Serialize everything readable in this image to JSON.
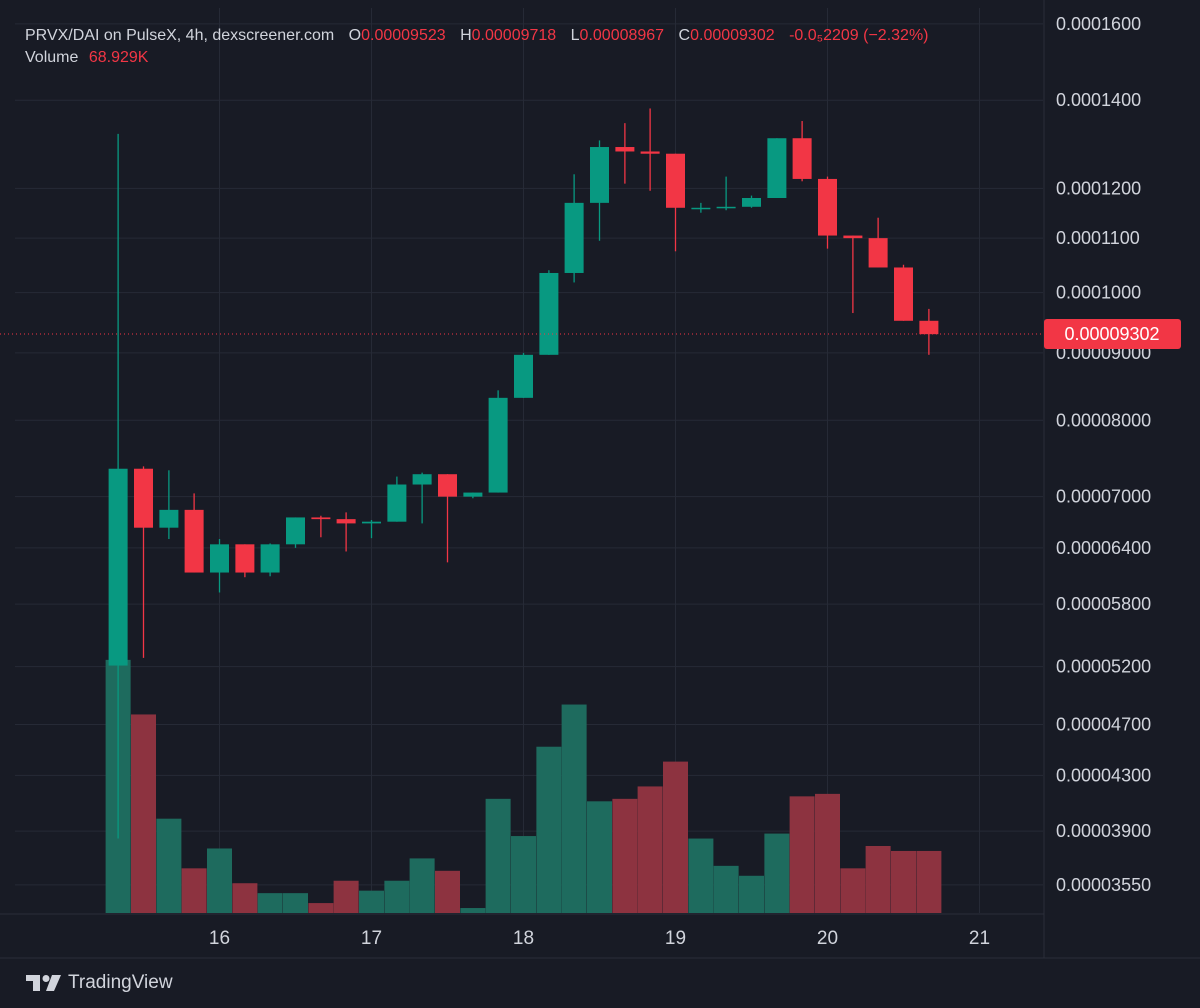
{
  "legend": {
    "symbol": "PRVX/DAI on PulseX, 4h, dexscreener.com",
    "open_label": "O",
    "open": "0.00009523",
    "high_label": "H",
    "high": "0.00009718",
    "low_label": "L",
    "low": "0.00008967",
    "close_label": "C",
    "close": "0.00009302",
    "change": "-0.0₅2209 (−2.32%)",
    "volume_label": "Volume",
    "volume": "68.929K"
  },
  "brand": {
    "name": "TradingView",
    "icon": "tradingview-logo-icon"
  },
  "colors": {
    "background": "#181b25",
    "up": "#089981",
    "down": "#f23645",
    "up_volume": "#1e6b5e",
    "down_volume": "#8d3340",
    "grid": "#262a36",
    "text": "#d1d4dc",
    "price_tag": "#f23645"
  },
  "chart_data": {
    "type": "candlestick",
    "timeframe": "4h",
    "y_scale": "log",
    "ylim": [
      3.38e-05,
      0.0001645
    ],
    "y_ticks": [
      "0.0001600",
      "0.0001400",
      "0.0001200",
      "0.0001100",
      "0.0001000",
      "0.00009000",
      "0.00008000",
      "0.00007000",
      "0.00006400",
      "0.00005800",
      "0.00005200",
      "0.00004700",
      "0.00004300",
      "0.00003900",
      "0.00003550"
    ],
    "x_ticks": [
      {
        "label": "16",
        "day": 16
      },
      {
        "label": "17",
        "day": 17
      },
      {
        "label": "18",
        "day": 18
      },
      {
        "label": "19",
        "day": 19
      },
      {
        "label": "20",
        "day": 20
      },
      {
        "label": "21",
        "day": 21
      }
    ],
    "last_price": "0.00009302",
    "volume_ylim": [
      0,
      55
    ],
    "series": [
      {
        "day": 15.333,
        "o": 5.21e-05,
        "h": 0.000132,
        "l": 3.85e-05,
        "c": 7.35e-05,
        "v": 51
      },
      {
        "day": 15.5,
        "o": 7.35e-05,
        "h": 7.38e-05,
        "l": 5.28e-05,
        "c": 6.63e-05,
        "v": 40
      },
      {
        "day": 15.667,
        "o": 6.63e-05,
        "h": 7.33e-05,
        "l": 6.5e-05,
        "c": 6.84e-05,
        "v": 19
      },
      {
        "day": 15.833,
        "o": 6.84e-05,
        "h": 7.04e-05,
        "l": 6.13e-05,
        "c": 6.13e-05,
        "v": 9
      },
      {
        "day": 16.0,
        "o": 6.13e-05,
        "h": 6.5e-05,
        "l": 5.92e-05,
        "c": 6.44e-05,
        "v": 13
      },
      {
        "day": 16.167,
        "o": 6.44e-05,
        "h": 6.44e-05,
        "l": 6.08e-05,
        "c": 6.13e-05,
        "v": 6
      },
      {
        "day": 16.333,
        "o": 6.13e-05,
        "h": 6.45e-05,
        "l": 6.09e-05,
        "c": 6.44e-05,
        "v": 4
      },
      {
        "day": 16.5,
        "o": 6.44e-05,
        "h": 6.75e-05,
        "l": 6.4e-05,
        "c": 6.75e-05,
        "v": 4
      },
      {
        "day": 16.667,
        "o": 6.75e-05,
        "h": 6.77e-05,
        "l": 6.52e-05,
        "c": 6.73e-05,
        "v": 2
      },
      {
        "day": 16.833,
        "o": 6.73e-05,
        "h": 6.81e-05,
        "l": 6.36e-05,
        "c": 6.68e-05,
        "v": 6.5
      },
      {
        "day": 17.0,
        "o": 6.68e-05,
        "h": 6.72e-05,
        "l": 6.51e-05,
        "c": 6.7e-05,
        "v": 4.5
      },
      {
        "day": 17.167,
        "o": 6.7e-05,
        "h": 7.25e-05,
        "l": 6.7e-05,
        "c": 7.15e-05,
        "v": 6.5
      },
      {
        "day": 17.333,
        "o": 7.15e-05,
        "h": 7.3e-05,
        "l": 6.68e-05,
        "c": 7.28e-05,
        "v": 11
      },
      {
        "day": 17.5,
        "o": 7.28e-05,
        "h": 7.28e-05,
        "l": 6.24e-05,
        "c": 7e-05,
        "v": 8.5
      },
      {
        "day": 17.667,
        "o": 7e-05,
        "h": 7.05e-05,
        "l": 6.98e-05,
        "c": 7.05e-05,
        "v": 1
      },
      {
        "day": 17.833,
        "o": 7.05e-05,
        "h": 8.43e-05,
        "l": 7.05e-05,
        "c": 8.32e-05,
        "v": 23
      },
      {
        "day": 18.0,
        "o": 8.32e-05,
        "h": 9e-05,
        "l": 8.32e-05,
        "c": 8.97e-05,
        "v": 15.5
      },
      {
        "day": 18.167,
        "o": 8.97e-05,
        "h": 0.000104,
        "l": 8.97e-05,
        "c": 0.0001035,
        "v": 33.5
      },
      {
        "day": 18.333,
        "o": 0.0001035,
        "h": 0.000123,
        "l": 0.0001018,
        "c": 0.000117,
        "v": 42
      },
      {
        "day": 18.5,
        "o": 0.000117,
        "h": 0.0001305,
        "l": 0.0001095,
        "c": 0.000129,
        "v": 22.5
      },
      {
        "day": 18.667,
        "o": 0.000129,
        "h": 0.0001345,
        "l": 0.000121,
        "c": 0.000128,
        "v": 23
      },
      {
        "day": 18.833,
        "o": 0.000128,
        "h": 0.000138,
        "l": 0.0001195,
        "c": 0.0001275,
        "v": 25.5
      },
      {
        "day": 19.0,
        "o": 0.0001275,
        "h": 0.0001275,
        "l": 0.0001075,
        "c": 0.000116,
        "v": 30.5
      },
      {
        "day": 19.167,
        "o": 0.000116,
        "h": 0.000117,
        "l": 0.000115,
        "c": 0.000116,
        "v": 15
      },
      {
        "day": 19.333,
        "o": 0.000116,
        "h": 0.0001225,
        "l": 0.0001155,
        "c": 0.0001162,
        "v": 9.5
      },
      {
        "day": 19.5,
        "o": 0.0001162,
        "h": 0.0001185,
        "l": 0.000116,
        "c": 0.000118,
        "v": 7.5
      },
      {
        "day": 19.667,
        "o": 0.000118,
        "h": 0.000131,
        "l": 0.000118,
        "c": 0.000131,
        "v": 16
      },
      {
        "day": 19.833,
        "o": 0.000131,
        "h": 0.000135,
        "l": 0.0001215,
        "c": 0.000122,
        "v": 23.5
      },
      {
        "day": 20.0,
        "o": 0.000122,
        "h": 0.0001225,
        "l": 0.000108,
        "c": 0.0001105,
        "v": 24
      },
      {
        "day": 20.167,
        "o": 0.0001105,
        "h": 0.0001105,
        "l": 9.65e-05,
        "c": 0.00011,
        "v": 9
      },
      {
        "day": 20.333,
        "o": 0.00011,
        "h": 0.000114,
        "l": 0.0001045,
        "c": 0.0001045,
        "v": 13.5
      },
      {
        "day": 20.5,
        "o": 0.0001045,
        "h": 0.000105,
        "l": 9.52e-05,
        "c": 9.52e-05,
        "v": 12.5
      },
      {
        "day": 20.667,
        "o": 9.52e-05,
        "h": 9.72e-05,
        "l": 8.97e-05,
        "c": 9.3e-05,
        "v": 12.5
      }
    ]
  }
}
